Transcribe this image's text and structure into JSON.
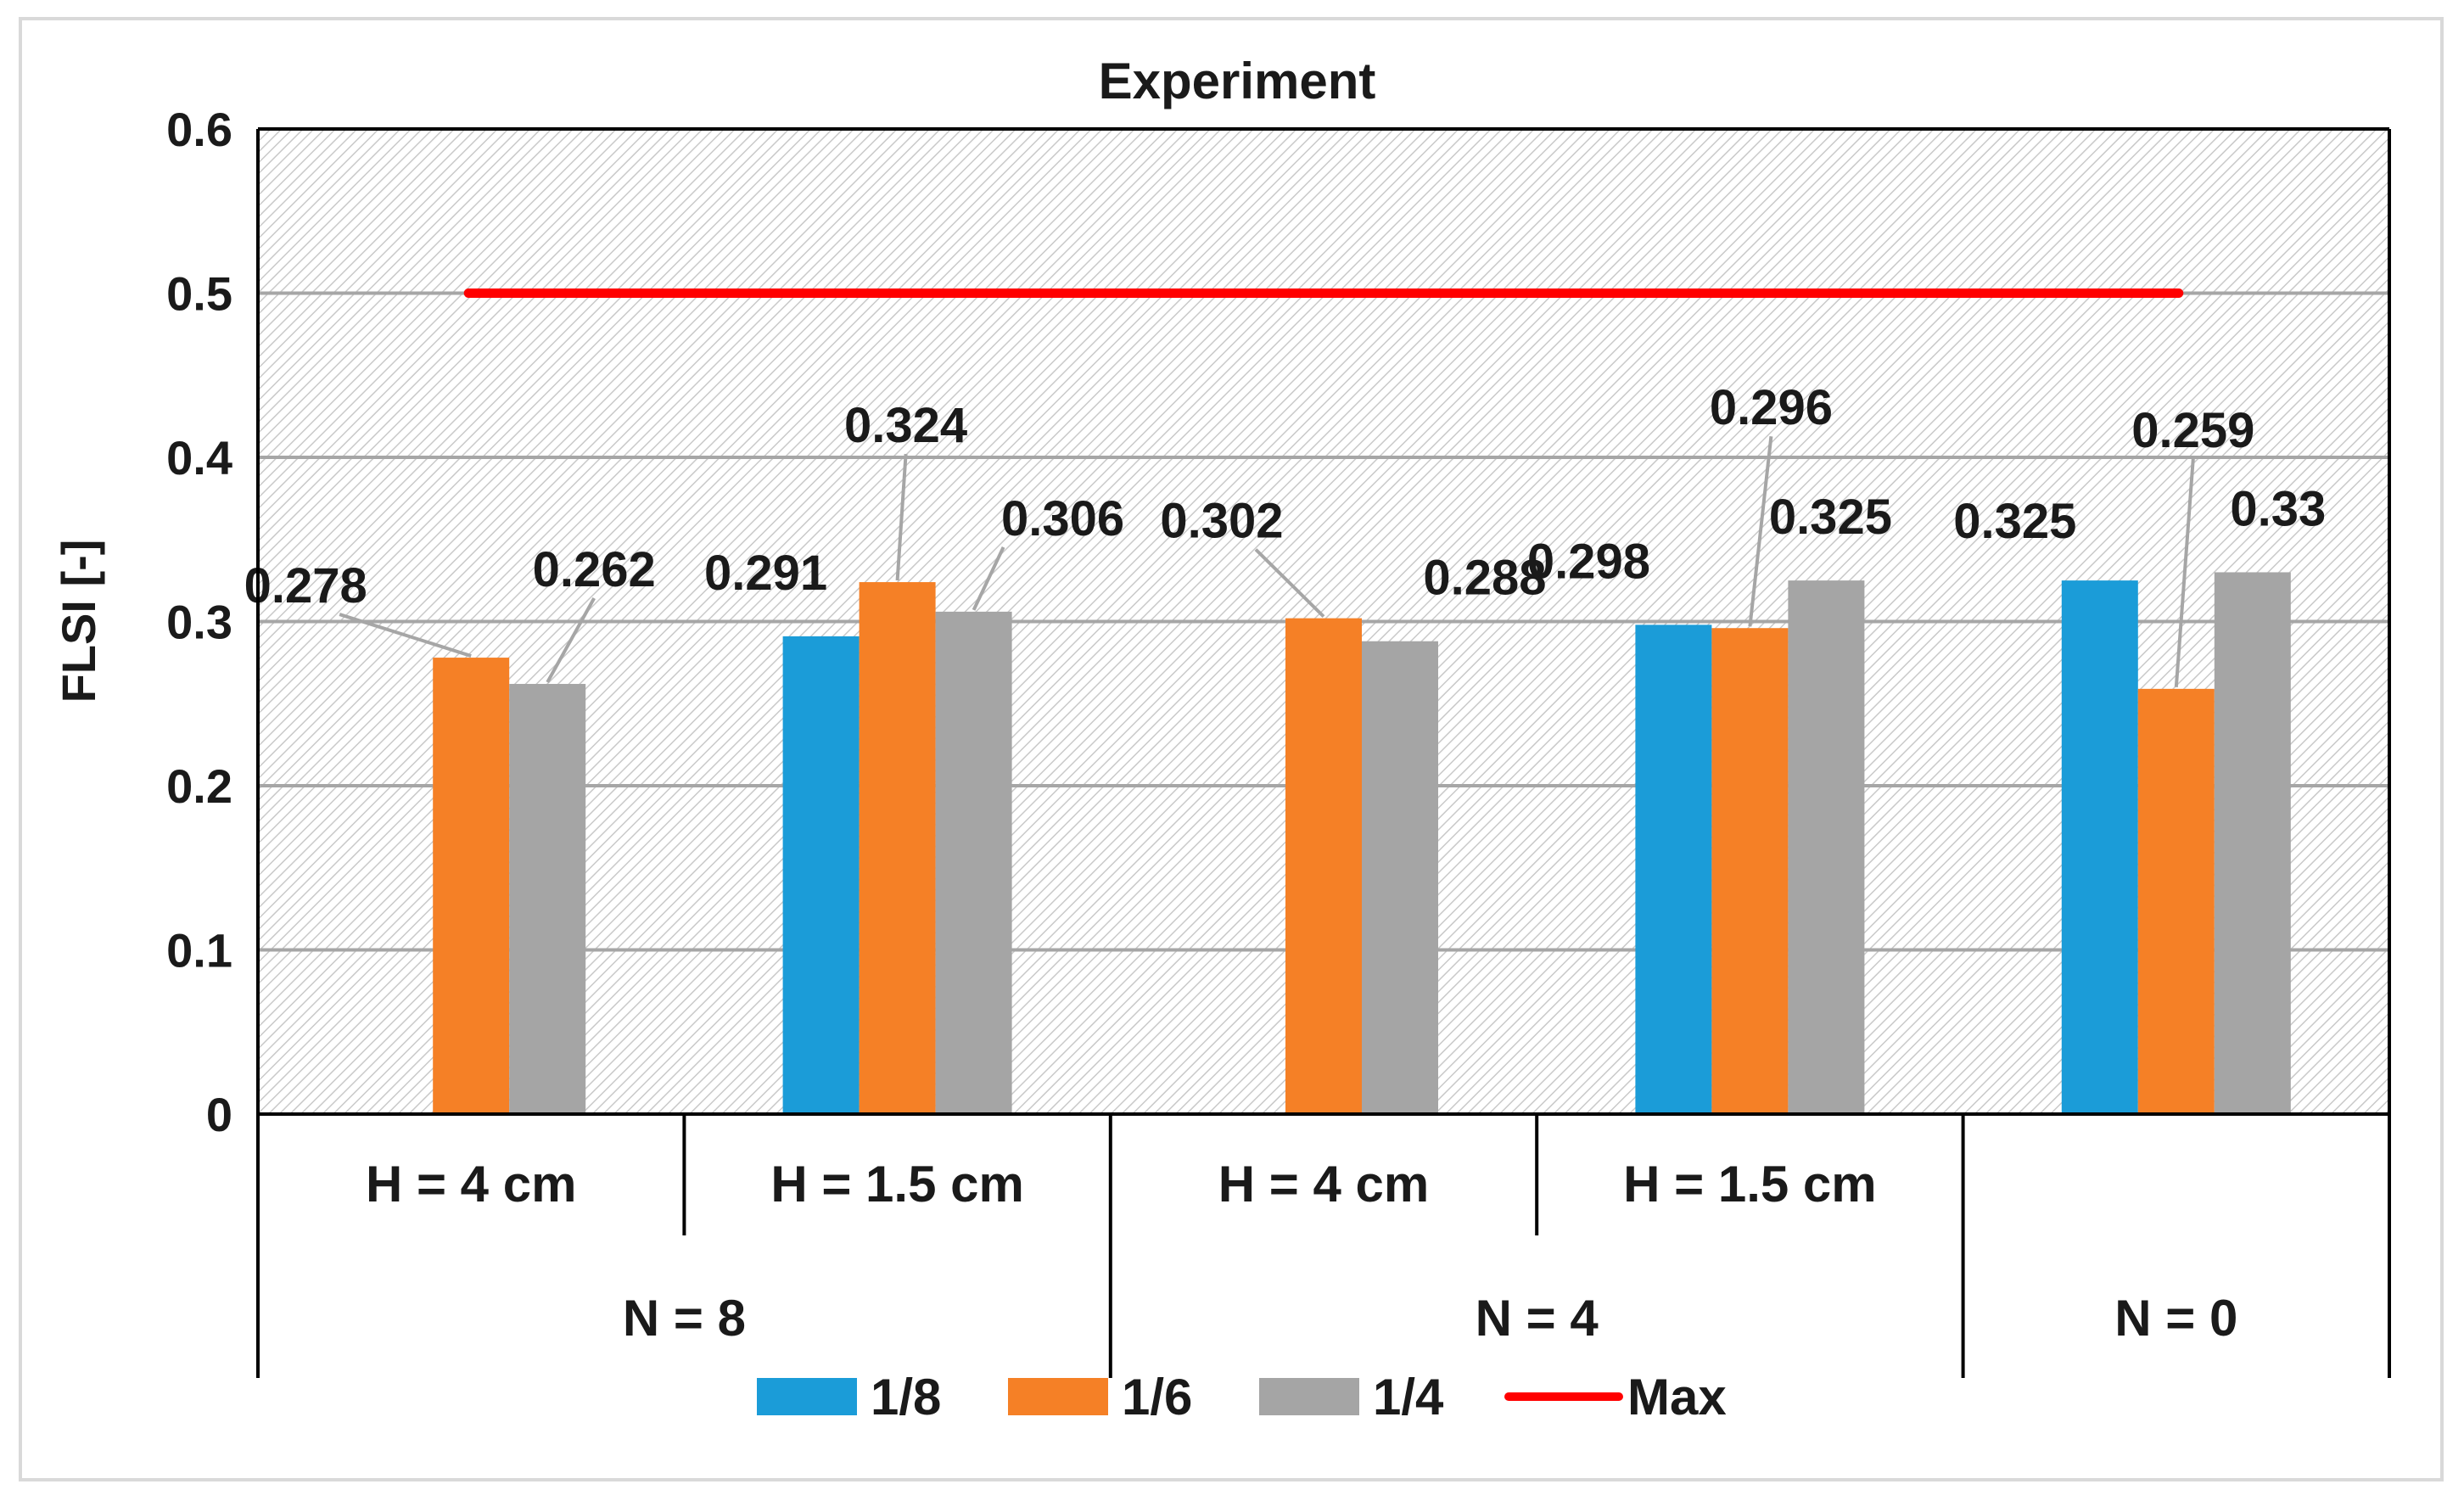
{
  "chart_data": {
    "type": "bar",
    "title": "Experiment",
    "ylabel": "FLSI [-]",
    "xlabel": "",
    "ylim": [
      0,
      0.6
    ],
    "yticks": [
      0,
      0.1,
      0.2,
      0.3,
      0.4,
      0.5,
      0.6
    ],
    "grid": true,
    "legend_position": "bottom",
    "categories": [
      {
        "inner": "H = 4 cm",
        "outer": "N = 8"
      },
      {
        "inner": "H = 1.5 cm",
        "outer": "N = 8"
      },
      {
        "inner": "H = 4 cm",
        "outer": "N = 4"
      },
      {
        "inner": "H = 1.5 cm",
        "outer": "N = 4"
      },
      {
        "inner": "",
        "outer": "N = 0"
      }
    ],
    "outer_groups": [
      {
        "label": "N = 8",
        "span": 2
      },
      {
        "label": "N = 4",
        "span": 2
      },
      {
        "label": "N = 0",
        "span": 1
      }
    ],
    "series": [
      {
        "name": "1/8",
        "color": "#1b9cd8",
        "values": [
          null,
          0.291,
          null,
          0.298,
          0.325
        ],
        "labels": [
          "",
          "0.291",
          "",
          "0.298",
          "0.325"
        ]
      },
      {
        "name": "1/6",
        "color": "#f58026",
        "values": [
          0.278,
          0.324,
          0.302,
          0.296,
          0.259
        ],
        "labels": [
          "0.278",
          "0.324",
          "0.302",
          "0.296",
          "0.259"
        ]
      },
      {
        "name": "1/4",
        "color": "#a5a5a5",
        "values": [
          0.262,
          0.306,
          0.288,
          0.325,
          0.33
        ],
        "labels": [
          "0.262",
          "0.306",
          "0.288",
          "0.325",
          "0.33"
        ]
      }
    ],
    "reference_line": {
      "name": "Max",
      "value": 0.5,
      "color": "#ff0000"
    }
  }
}
